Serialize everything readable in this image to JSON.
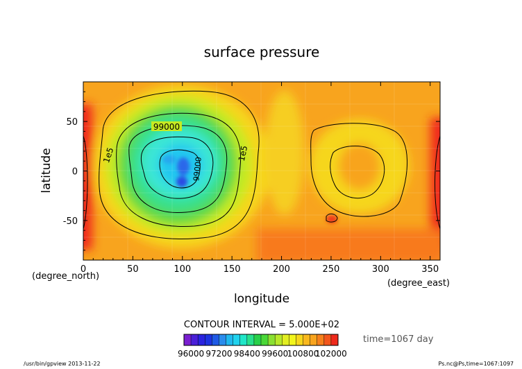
{
  "chart_data": {
    "type": "heatmap",
    "title": "surface pressure",
    "xlabel": "longitude",
    "ylabel": "latitude",
    "x_unit": "(degree_east)",
    "y_unit": "(degree_north)",
    "xlim": [
      0,
      360
    ],
    "ylim": [
      -90,
      90
    ],
    "x_ticks": [
      0,
      50,
      100,
      150,
      200,
      250,
      300,
      350
    ],
    "y_ticks": [
      -50,
      0,
      50
    ],
    "contour_interval_text": "CONTOUR INTERVAL = 5.000E+02",
    "contour_labels": [
      "99000",
      "1e5",
      "1e5",
      "99000"
    ],
    "time_text": "time=1067 day",
    "colorbar": {
      "min": 95700,
      "max": 102300,
      "step": 300,
      "tick_labels": [
        "96000",
        "97200",
        "98400",
        "99600",
        "100800",
        "102000"
      ]
    },
    "footer_left": "/usr/bin/gpview  2013-11-22",
    "footer_right": "Ps.nc@Ps,time=1067:1097",
    "colors": {
      "low": "#7a1fd0",
      "blue": "#1d33e0",
      "cyan": "#20d2ee",
      "green": "#28d04a",
      "yellow": "#f2f51c",
      "orange": "#f8a41e",
      "red": "#ef2a1c",
      "pink": "#f7a3a3"
    }
  }
}
